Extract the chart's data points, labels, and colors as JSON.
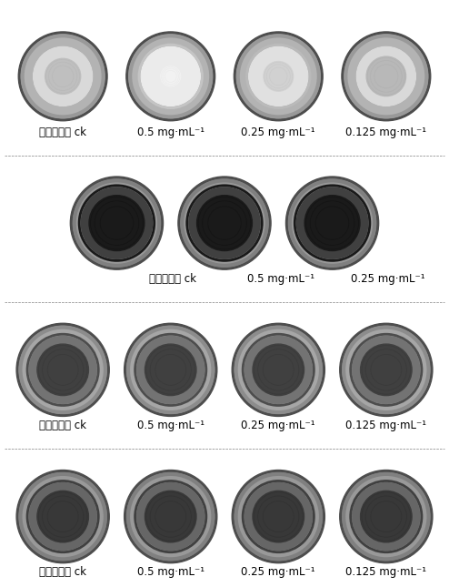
{
  "rows": [
    {
      "label_prefix": "天南星炭疤",
      "cols": [
        {
          "sublabel": "ck"
        },
        {
          "sublabel": "0.5 mg·mL⁻¹"
        },
        {
          "sublabel": "0.25 mg·mL⁻¹"
        },
        {
          "sublabel": "0.125 mg·mL⁻¹"
        }
      ],
      "n_cols": 4,
      "bg_color": "#ffffff",
      "dish_shades": [
        "light_dark",
        "light_white",
        "light_gray",
        "light_dark2"
      ]
    },
    {
      "label_prefix": "花生褐斑菌",
      "cols": [
        {
          "sublabel": "ck"
        },
        {
          "sublabel": "0.5 mg·mL⁻¹"
        },
        {
          "sublabel": "0.25 mg·mL⁻¹"
        }
      ],
      "n_cols": 3,
      "bg_color": "#000000",
      "dish_shades": [
        "very_dark",
        "very_dark",
        "very_dark"
      ]
    },
    {
      "label_prefix": "茄子茎枯菌",
      "cols": [
        {
          "sublabel": "ck"
        },
        {
          "sublabel": "0.5 mg·mL⁻¹"
        },
        {
          "sublabel": "0.25 mg·mL⁻¹"
        },
        {
          "sublabel": "0.125 mg·mL⁻¹"
        }
      ],
      "n_cols": 4,
      "bg_color": "#ffffff",
      "dish_shades": [
        "medium_dark",
        "medium_dark",
        "medium_dark",
        "medium_dark"
      ]
    },
    {
      "label_prefix": "烟草赤星菌",
      "cols": [
        {
          "sublabel": "ck"
        },
        {
          "sublabel": "0.5 mg·mL⁻¹"
        },
        {
          "sublabel": "0.25 mg·mL⁻¹"
        },
        {
          "sublabel": "0.125 mg·mL⁻¹"
        }
      ],
      "n_cols": 4,
      "bg_color": "#ffffff",
      "dish_shades": [
        "medium_dark2",
        "medium_dark2",
        "medium_dark2",
        "medium_dark2"
      ]
    }
  ],
  "figure_bg": "#ffffff",
  "text_color": "#000000",
  "font_size_label": 8.5
}
